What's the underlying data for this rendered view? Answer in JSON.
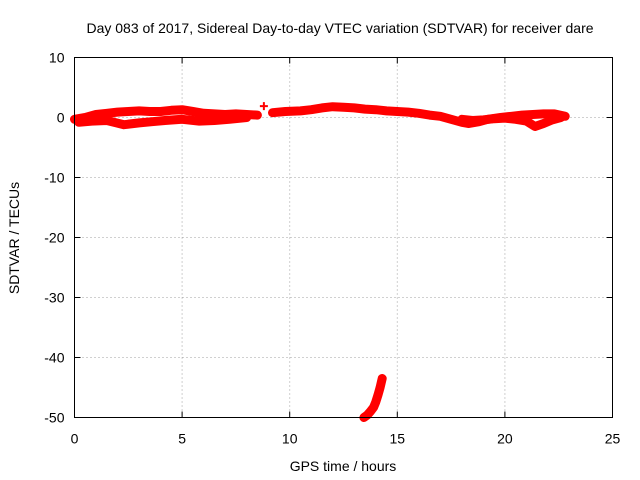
{
  "chart_data": {
    "type": "scatter",
    "title": "Day 083 of 2017, Sidereal Day-to-day VTEC variation (SDTVAR) for receiver dare",
    "xlabel": "GPS time / hours",
    "ylabel": "SDTVAR / TECUs",
    "xlim": [
      0,
      25
    ],
    "ylim": [
      -50,
      10
    ],
    "xticks": [
      0,
      5,
      10,
      15,
      20,
      25
    ],
    "yticks": [
      10,
      0,
      -10,
      -20,
      -30,
      -40,
      -50
    ],
    "grid": true,
    "marker": "plus",
    "color": "#ff0000",
    "series": [
      {
        "name": "track-main-1",
        "points": [
          [
            0.0,
            -0.3
          ],
          [
            0.5,
            0.0
          ],
          [
            1.0,
            0.5
          ],
          [
            1.5,
            0.7
          ],
          [
            2.0,
            0.9
          ],
          [
            2.5,
            1.0
          ],
          [
            3.0,
            1.1
          ],
          [
            3.5,
            1.0
          ],
          [
            4.0,
            1.0
          ],
          [
            4.5,
            1.2
          ],
          [
            5.0,
            1.3
          ],
          [
            5.5,
            1.0
          ],
          [
            6.0,
            0.7
          ],
          [
            6.5,
            0.6
          ],
          [
            7.0,
            0.5
          ],
          [
            7.5,
            0.6
          ],
          [
            8.0,
            0.5
          ],
          [
            8.5,
            0.4
          ]
        ]
      },
      {
        "name": "track-lower-1",
        "points": [
          [
            0.2,
            -0.8
          ],
          [
            0.8,
            -0.6
          ],
          [
            1.5,
            -0.5
          ],
          [
            2.3,
            -1.2
          ],
          [
            3.0,
            -0.9
          ],
          [
            3.6,
            -0.7
          ],
          [
            4.2,
            -0.5
          ],
          [
            5.0,
            -0.3
          ],
          [
            5.8,
            -0.6
          ],
          [
            6.5,
            -0.5
          ],
          [
            7.2,
            -0.3
          ],
          [
            8.0,
            0.0
          ]
        ]
      },
      {
        "name": "track-main-2",
        "points": [
          [
            9.2,
            0.8
          ],
          [
            9.8,
            1.0
          ],
          [
            10.5,
            1.1
          ],
          [
            11.0,
            1.3
          ],
          [
            11.5,
            1.6
          ],
          [
            12.0,
            1.8
          ],
          [
            12.5,
            1.7
          ],
          [
            13.0,
            1.6
          ],
          [
            13.5,
            1.4
          ],
          [
            14.0,
            1.3
          ],
          [
            14.5,
            1.1
          ],
          [
            15.0,
            1.0
          ],
          [
            15.5,
            0.9
          ],
          [
            16.0,
            0.7
          ],
          [
            16.5,
            0.4
          ],
          [
            17.0,
            0.2
          ],
          [
            17.5,
            -0.3
          ],
          [
            18.0,
            -0.8
          ],
          [
            18.3,
            -1.0
          ],
          [
            18.8,
            -0.7
          ],
          [
            19.2,
            -0.3
          ],
          [
            19.8,
            0.0
          ],
          [
            20.3,
            0.2
          ],
          [
            20.8,
            0.4
          ],
          [
            21.3,
            0.5
          ],
          [
            21.8,
            0.6
          ],
          [
            22.3,
            0.6
          ],
          [
            22.8,
            0.2
          ]
        ]
      },
      {
        "name": "track-lower-2",
        "points": [
          [
            18.0,
            -0.3
          ],
          [
            18.5,
            -0.5
          ],
          [
            19.0,
            -0.4
          ],
          [
            19.5,
            -0.2
          ],
          [
            20.0,
            -0.1
          ],
          [
            20.5,
            -0.3
          ],
          [
            21.0,
            -0.6
          ],
          [
            21.4,
            -1.5
          ],
          [
            21.8,
            -1.0
          ],
          [
            22.2,
            -0.4
          ],
          [
            22.6,
            0.0
          ]
        ]
      },
      {
        "name": "isolated-point",
        "points": [
          [
            8.8,
            1.9
          ]
        ]
      },
      {
        "name": "descending-track",
        "points": [
          [
            14.3,
            -43.5
          ],
          [
            14.2,
            -45.0
          ],
          [
            14.1,
            -46.3
          ],
          [
            14.0,
            -47.4
          ],
          [
            13.9,
            -48.3
          ],
          [
            13.75,
            -49.0
          ],
          [
            13.6,
            -49.6
          ],
          [
            13.45,
            -50.0
          ]
        ]
      }
    ]
  }
}
